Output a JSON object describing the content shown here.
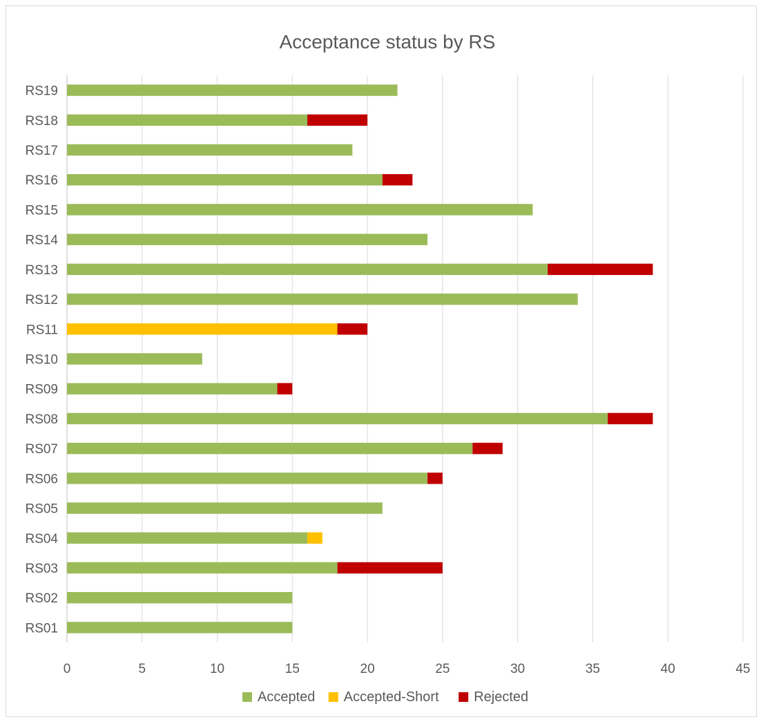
{
  "chart_data": {
    "type": "bar",
    "orientation": "horizontal",
    "stacked": true,
    "title": "Acceptance status by RS",
    "xlabel": "",
    "ylabel": "",
    "xlim": [
      0,
      45
    ],
    "x_ticks": [
      0,
      5,
      10,
      15,
      20,
      25,
      30,
      35,
      40,
      45
    ],
    "grid": true,
    "legend_position": "bottom",
    "categories": [
      "RS01",
      "RS02",
      "RS03",
      "RS04",
      "RS05",
      "RS06",
      "RS07",
      "RS08",
      "RS09",
      "RS10",
      "RS11",
      "RS12",
      "RS13",
      "RS14",
      "RS15",
      "RS16",
      "RS17",
      "RS18",
      "RS19"
    ],
    "series": [
      {
        "name": "Accepted",
        "color": "#9bbb59",
        "values": [
          15,
          15,
          18,
          16,
          21,
          24,
          27,
          36,
          14,
          9,
          0,
          34,
          32,
          24,
          31,
          21,
          19,
          16,
          22
        ]
      },
      {
        "name": "Accepted-Short",
        "color": "#ffc000",
        "values": [
          0,
          0,
          0,
          1,
          0,
          0,
          0,
          0,
          0,
          0,
          18,
          0,
          0,
          0,
          0,
          0,
          0,
          0,
          0
        ]
      },
      {
        "name": "Rejected",
        "color": "#c00000",
        "values": [
          0,
          0,
          7,
          0,
          0,
          1,
          2,
          3,
          1,
          0,
          2,
          0,
          7,
          0,
          0,
          2,
          0,
          4,
          0
        ]
      }
    ]
  }
}
